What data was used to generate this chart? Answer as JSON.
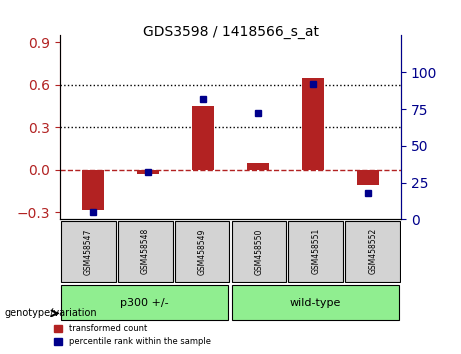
{
  "title": "GDS3598 / 1418566_s_at",
  "samples": [
    "GSM458547",
    "GSM458548",
    "GSM458549",
    "GSM458550",
    "GSM458551",
    "GSM458552"
  ],
  "transformed_count": [
    -0.285,
    -0.03,
    0.45,
    0.05,
    0.65,
    -0.11
  ],
  "percentile_rank": [
    5,
    32,
    82,
    72,
    92,
    18
  ],
  "groups": [
    {
      "label": "p300 +/-",
      "samples": [
        0,
        1,
        2
      ],
      "color": "#90EE90"
    },
    {
      "label": "wild-type",
      "samples": [
        3,
        4,
        5
      ],
      "color": "#90EE90"
    }
  ],
  "group_bg_color": "#90EE90",
  "sample_bg_color": "#d3d3d3",
  "bar_color": "#b22222",
  "dot_color": "#00008b",
  "ylim_left": [
    -0.35,
    0.95
  ],
  "ylim_right": [
    0,
    125
  ],
  "yticks_left": [
    -0.3,
    0.0,
    0.3,
    0.6,
    0.9
  ],
  "yticks_right": [
    0,
    25,
    50,
    75,
    100
  ],
  "hline_y": 0.0,
  "dotted_lines": [
    0.3,
    0.6
  ],
  "bar_width": 0.4
}
